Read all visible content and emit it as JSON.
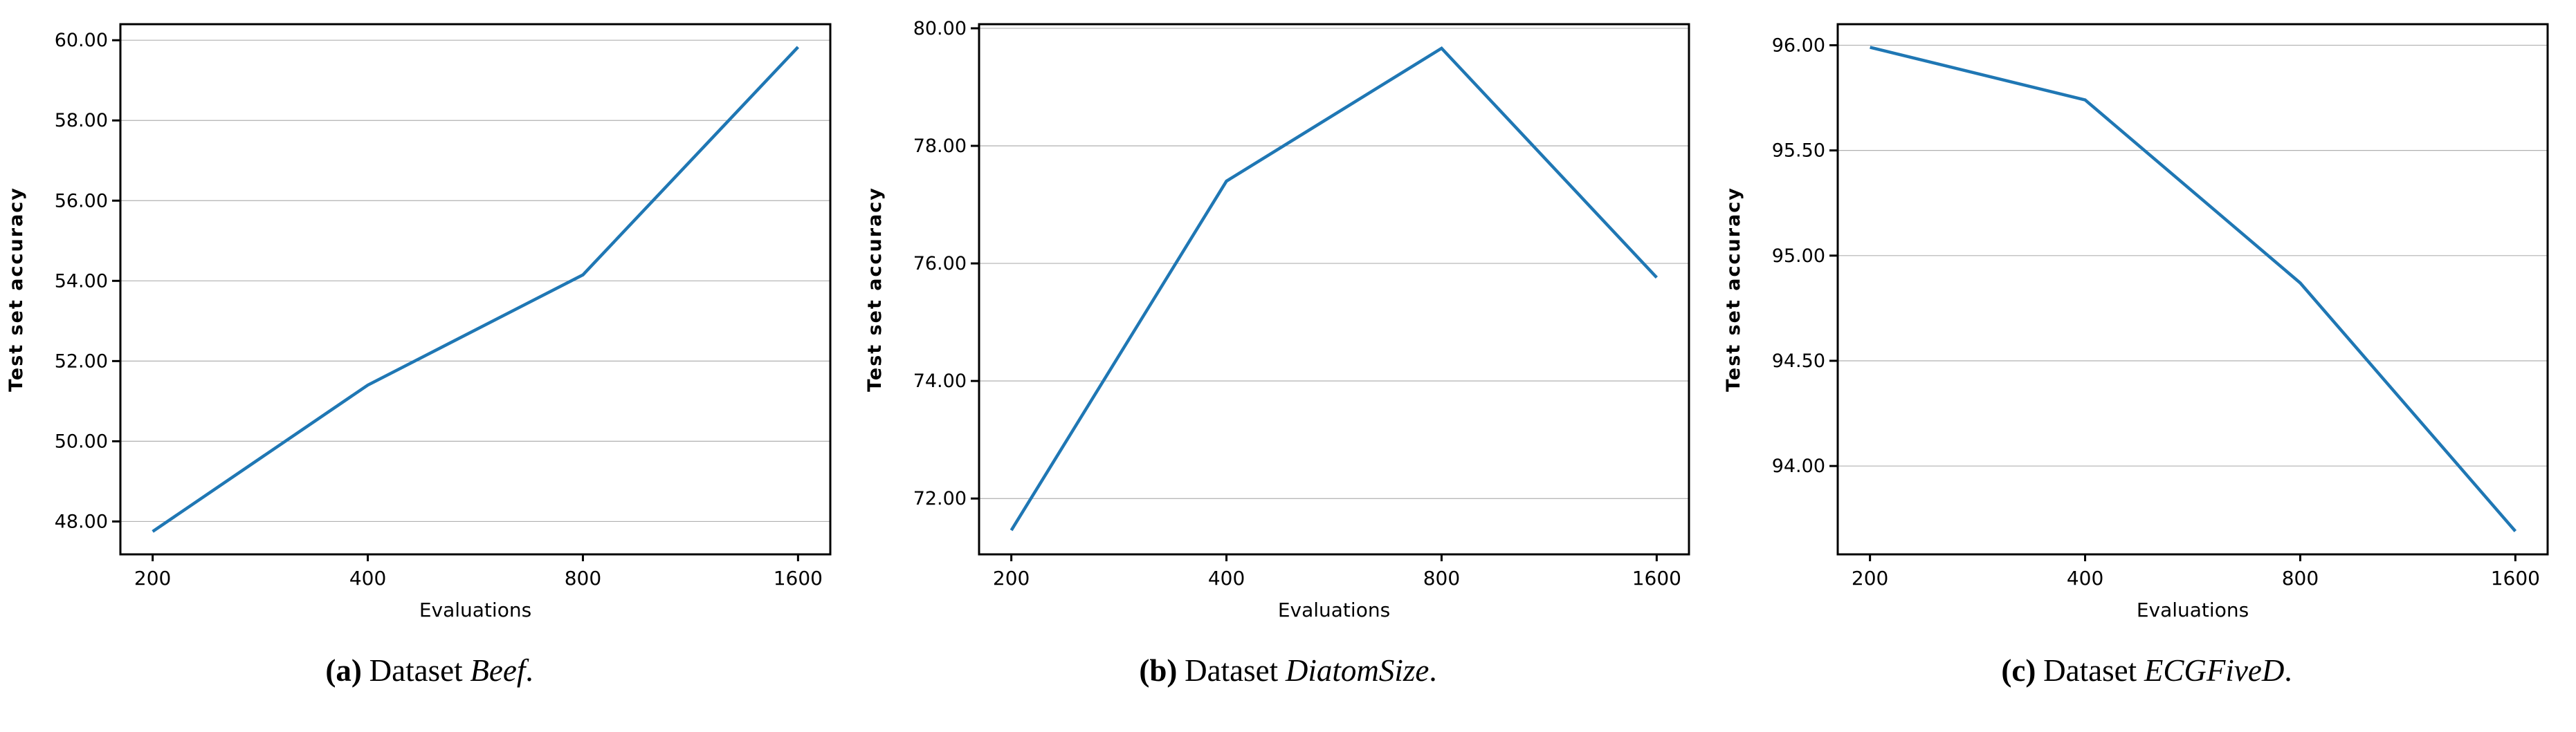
{
  "figure": {
    "background": "#ffffff",
    "line_color": "#1f77b4",
    "grid_color": "#b0b0b0",
    "spine_color": "#000000",
    "text_color": "#000000"
  },
  "chart_data": [
    {
      "type": "line",
      "title": "(a) Dataset Beef.",
      "caption": {
        "index": "(a)",
        "pre": "Dataset",
        "name": "Beef",
        "suffix": "."
      },
      "xlabel": "Evaluations",
      "ylabel": "Test set accuracy",
      "x": [
        200,
        400,
        800,
        1600
      ],
      "xtick_labels": [
        "200",
        "400",
        "800",
        "1600"
      ],
      "values": [
        47.75,
        51.4,
        54.15,
        59.83
      ],
      "ylim": [
        47.18,
        60.4
      ],
      "yticks": [
        48,
        50,
        52,
        54,
        56,
        58,
        60
      ],
      "ytick_labels": [
        "48.00",
        "50.00",
        "52.00",
        "54.00",
        "56.00",
        "58.00",
        "60.00"
      ],
      "grid": true,
      "legend": "none"
    },
    {
      "type": "line",
      "title": "(b) Dataset DiatomSize.",
      "caption": {
        "index": "(b)",
        "pre": "Dataset",
        "name": "DiatomSize",
        "suffix": "."
      },
      "xlabel": "Evaluations",
      "ylabel": "Test set accuracy",
      "x": [
        200,
        400,
        800,
        1600
      ],
      "xtick_labels": [
        "200",
        "400",
        "800",
        "1600"
      ],
      "values": [
        71.46,
        77.4,
        79.66,
        75.76
      ],
      "ylim": [
        71.05,
        80.07
      ],
      "yticks": [
        72,
        74,
        76,
        78,
        80
      ],
      "ytick_labels": [
        "72.00",
        "74.00",
        "76.00",
        "78.00",
        "80.00"
      ],
      "grid": true,
      "legend": "none"
    },
    {
      "type": "line",
      "title": "(c) Dataset ECGFiveD.",
      "caption": {
        "index": "(c)",
        "pre": "Dataset",
        "name": "ECGFiveD",
        "suffix": "."
      },
      "xlabel": "Evaluations",
      "ylabel": "Test set accuracy",
      "x": [
        200,
        400,
        800,
        1600
      ],
      "xtick_labels": [
        "200",
        "400",
        "800",
        "1600"
      ],
      "values": [
        95.99,
        95.74,
        94.87,
        93.69
      ],
      "ylim": [
        93.58,
        96.1
      ],
      "yticks": [
        94.0,
        94.5,
        95.0,
        95.5,
        96.0
      ],
      "ytick_labels": [
        "94.00",
        "94.50",
        "95.00",
        "95.50",
        "96.00"
      ],
      "grid": true,
      "legend": "none"
    }
  ]
}
